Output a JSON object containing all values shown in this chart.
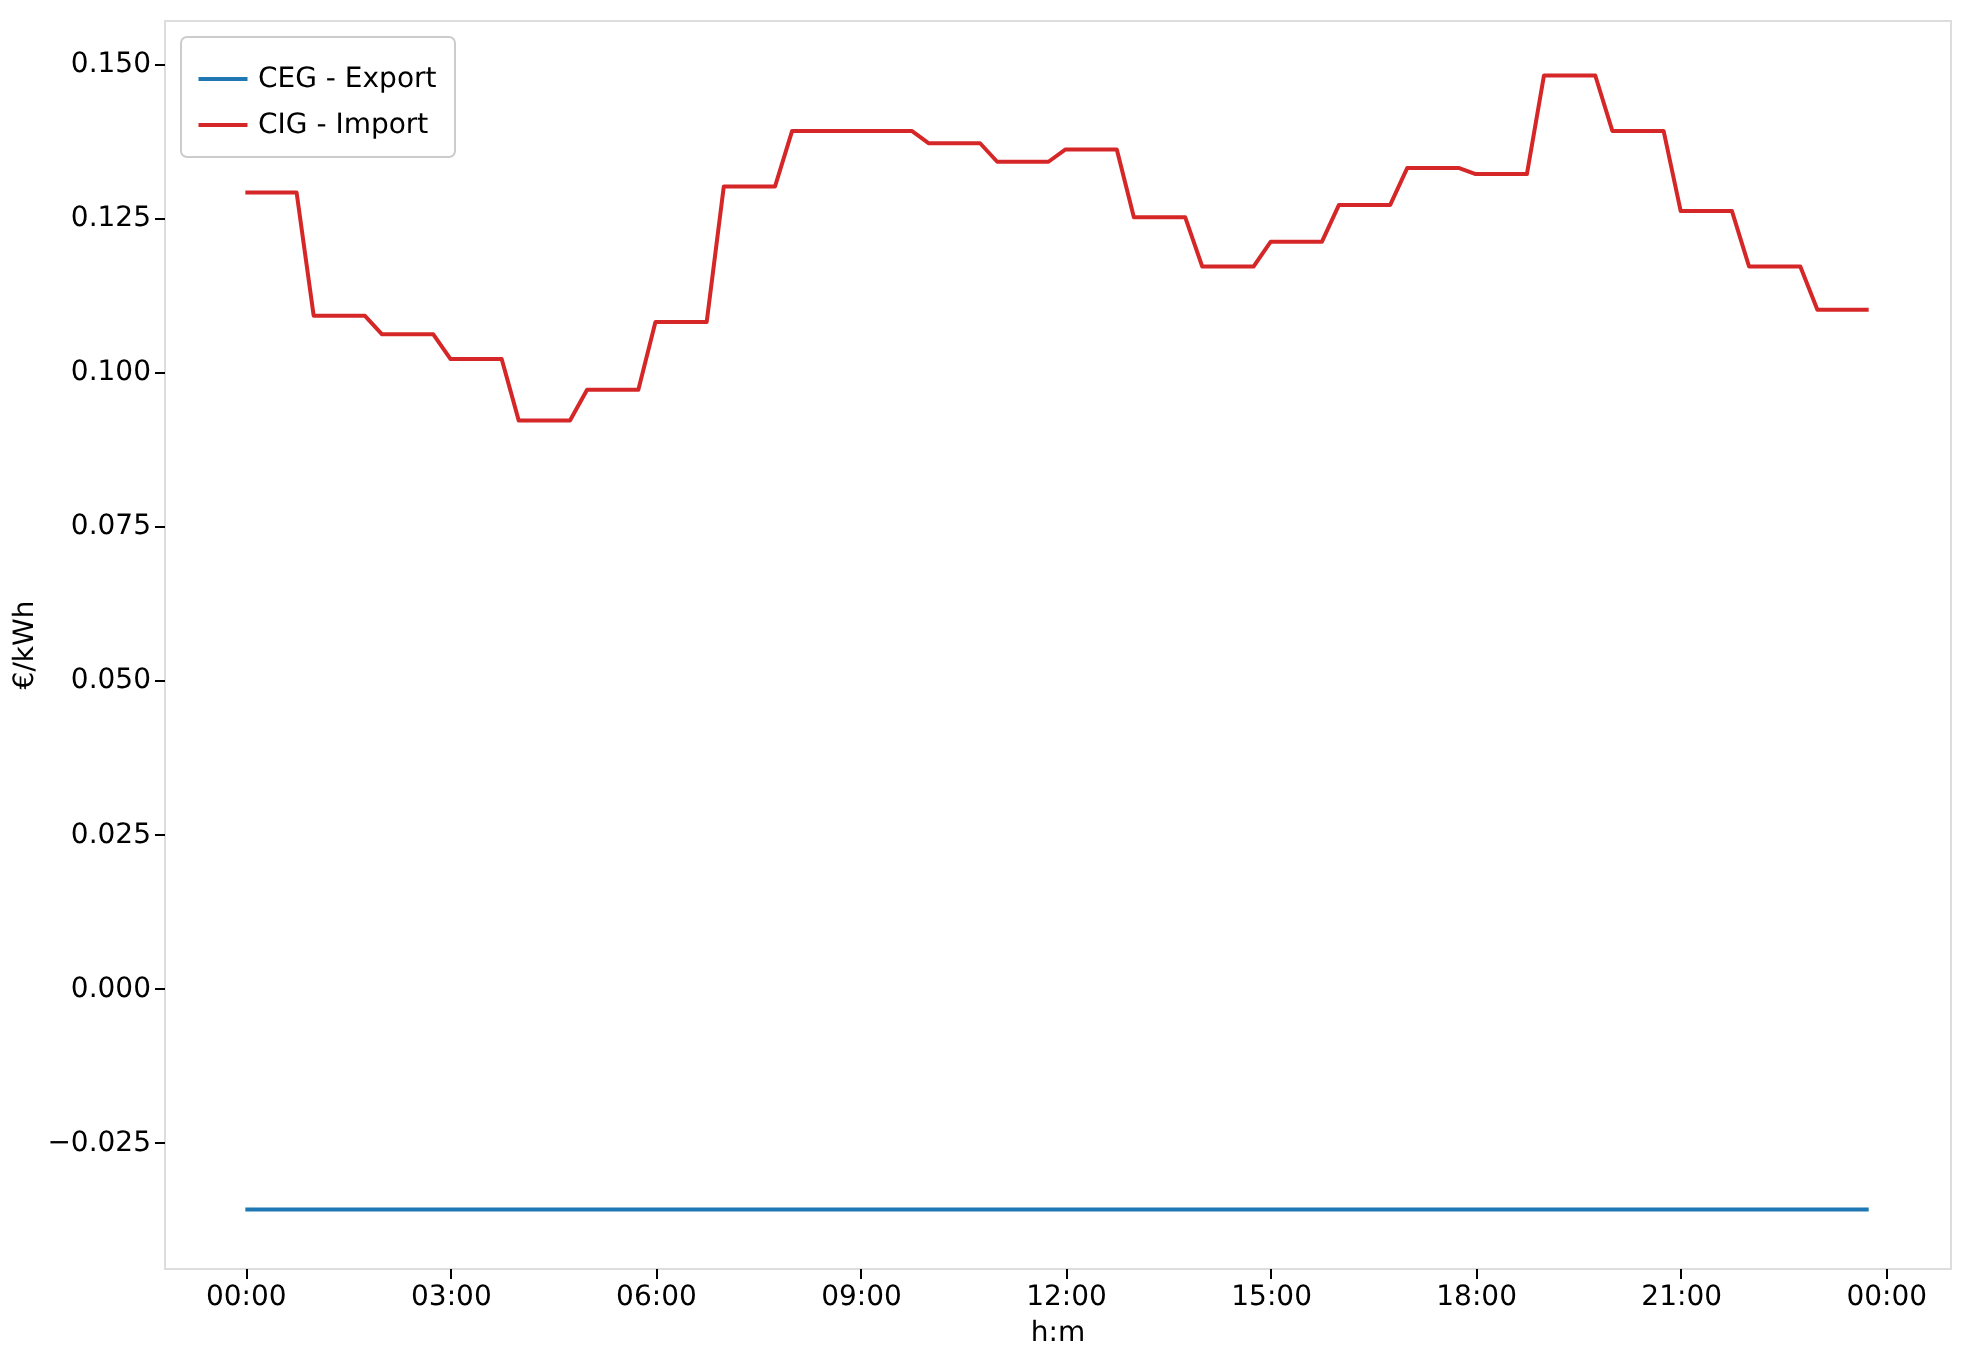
{
  "chart_data": {
    "type": "line",
    "xlabel": "h:m",
    "ylabel": "€/kWh",
    "xlim": [
      -1.19,
      24.94
    ],
    "ylim": [
      -0.0455,
      0.157
    ],
    "xticks": [
      {
        "value": 0,
        "label": "00:00"
      },
      {
        "value": 3,
        "label": "03:00"
      },
      {
        "value": 6,
        "label": "06:00"
      },
      {
        "value": 9,
        "label": "09:00"
      },
      {
        "value": 12,
        "label": "12:00"
      },
      {
        "value": 15,
        "label": "15:00"
      },
      {
        "value": 18,
        "label": "18:00"
      },
      {
        "value": 21,
        "label": "21:00"
      },
      {
        "value": 24,
        "label": "00:00"
      }
    ],
    "yticks": [
      {
        "value": -0.025,
        "label": "−0.025"
      },
      {
        "value": 0,
        "label": "0.000"
      },
      {
        "value": 0.025,
        "label": "0.025"
      },
      {
        "value": 0.05,
        "label": "0.050"
      },
      {
        "value": 0.075,
        "label": "0.075"
      },
      {
        "value": 0.1,
        "label": "0.100"
      },
      {
        "value": 0.125,
        "label": "0.125"
      },
      {
        "value": 0.15,
        "label": "0.150"
      }
    ],
    "grid": false,
    "legend": "top left",
    "line_style": "solid",
    "marker": "none",
    "series": [
      {
        "name": "CEG - Export",
        "color": "#1f77b4",
        "x": [
          0,
          23.75
        ],
        "values": [
          -0.036,
          -0.036
        ]
      },
      {
        "name": "CIG - Import",
        "color": "#d62728",
        "x": [
          0,
          0.75,
          1,
          1.75,
          2,
          2.75,
          3,
          3.75,
          4,
          4.75,
          5,
          5.75,
          6,
          6.75,
          7,
          7.75,
          8,
          8.75,
          9,
          9.75,
          10,
          10.75,
          11,
          11.75,
          12,
          12.75,
          13,
          13.75,
          14,
          14.75,
          15,
          15.75,
          16,
          16.75,
          17,
          17.75,
          18,
          18.75,
          19,
          19.75,
          20,
          20.75,
          21,
          21.75,
          22,
          22.75,
          23,
          23.75
        ],
        "values": [
          0.129,
          0.129,
          0.109,
          0.109,
          0.106,
          0.106,
          0.102,
          0.102,
          0.092,
          0.092,
          0.097,
          0.097,
          0.108,
          0.108,
          0.13,
          0.13,
          0.139,
          0.139,
          0.139,
          0.139,
          0.137,
          0.137,
          0.134,
          0.134,
          0.136,
          0.136,
          0.125,
          0.125,
          0.117,
          0.117,
          0.121,
          0.121,
          0.127,
          0.127,
          0.133,
          0.133,
          0.132,
          0.132,
          0.148,
          0.148,
          0.139,
          0.139,
          0.126,
          0.126,
          0.117,
          0.117,
          0.11,
          0.11
        ]
      }
    ]
  }
}
